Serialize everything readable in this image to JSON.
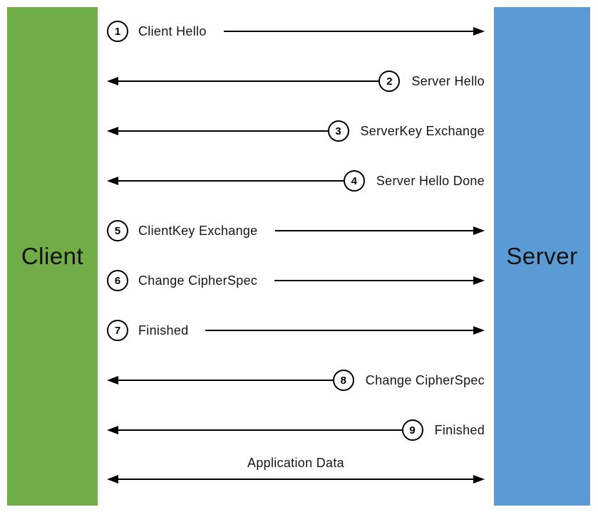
{
  "diagram": {
    "client_label": "Client",
    "server_label": "Server",
    "colors": {
      "client_box": "#70AD47",
      "server_box": "#5B9BD5",
      "arrow": "#000000",
      "background": "#FFFFFF"
    },
    "messages": [
      {
        "step": "1",
        "label": "Client Hello",
        "direction": "right"
      },
      {
        "step": "2",
        "label": "Server Hello",
        "direction": "left"
      },
      {
        "step": "3",
        "label": "ServerKey Exchange",
        "direction": "left"
      },
      {
        "step": "4",
        "label": "Server Hello Done",
        "direction": "left"
      },
      {
        "step": "5",
        "label": "ClientKey Exchange",
        "direction": "right"
      },
      {
        "step": "6",
        "label": "Change CipherSpec",
        "direction": "right"
      },
      {
        "step": "7",
        "label": "Finished",
        "direction": "right"
      },
      {
        "step": "8",
        "label": "Change CipherSpec",
        "direction": "left"
      },
      {
        "step": "9",
        "label": "Finished",
        "direction": "left"
      },
      {
        "step": "",
        "label": "Application Data",
        "direction": "both"
      }
    ]
  }
}
